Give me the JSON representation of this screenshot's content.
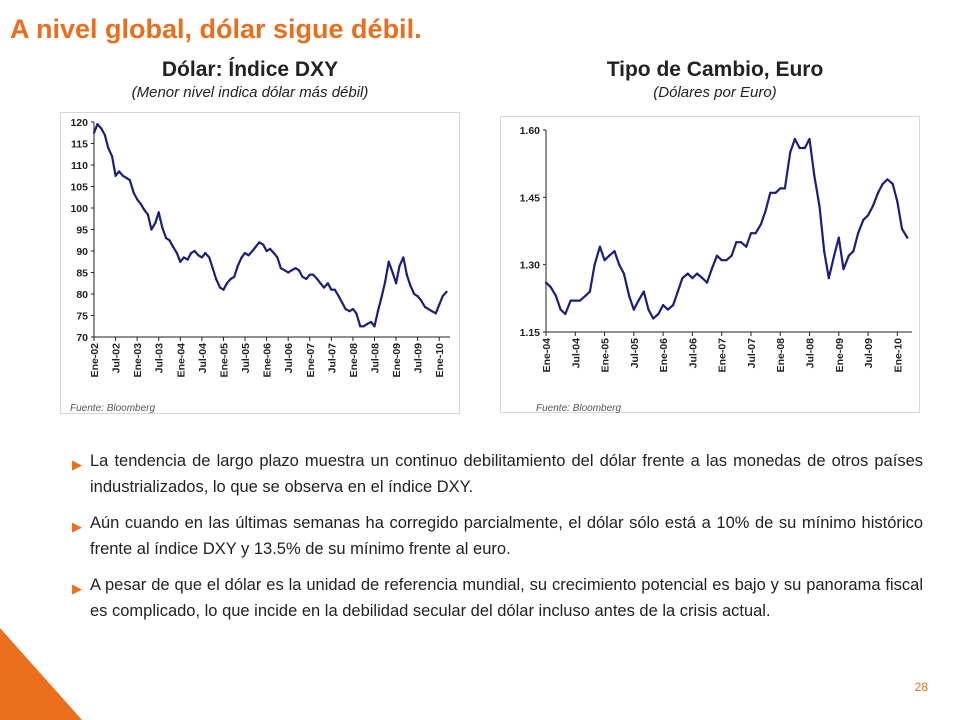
{
  "slide": {
    "title": "A nivel global, dólar sigue débil.",
    "page_number": "28",
    "accent_color": "#EB6E1C",
    "bullet_icon": "triangle-right-icon"
  },
  "bullets": [
    "La tendencia de largo plazo muestra un continuo debilitamiento del dólar frente a las monedas de otros países industrializados, lo que se observa en el índice DXY.",
    "Aún cuando en las últimas semanas ha corregido parcialmente, el dólar sólo está a 10% de su mínimo histórico frente al índice DXY y 13.5% de su mínimo frente al euro.",
    "A pesar de que el dólar es la unidad de referencia mundial, su crecimiento potencial es bajo y su panorama fiscal es complicado, lo que incide en la debilidad secular del dólar incluso antes de la crisis actual."
  ],
  "chart_data": [
    {
      "type": "line",
      "title": "Dólar: Índice DXY",
      "subtitle": "(Menor nivel indica dólar más débil)",
      "source": "Fuente: Bloomberg",
      "ylim": [
        70,
        120
      ],
      "yticks": [
        70,
        75,
        80,
        85,
        90,
        95,
        100,
        105,
        110,
        115,
        120
      ],
      "xlim": [
        2002.0,
        2010.25
      ],
      "xtick_labels": [
        "Ene-02",
        "Jul-02",
        "Ene-03",
        "Jul-03",
        "Ene-04",
        "Jul-04",
        "Ene-05",
        "Jul-05",
        "Ene-06",
        "Jul-06",
        "Ene-07",
        "Jul-07",
        "Ene-08",
        "Jul-08",
        "Ene-09",
        "Jul-09",
        "Ene-10"
      ],
      "line_color": "#1B1F7A",
      "grid": false,
      "series": [
        {
          "x": [
            2002.0,
            2002.08,
            2002.17,
            2002.25,
            2002.33,
            2002.42,
            2002.5,
            2002.58,
            2002.67,
            2002.75,
            2002.83,
            2002.92,
            2003.0,
            2003.08,
            2003.17,
            2003.25,
            2003.33,
            2003.42,
            2003.5,
            2003.58,
            2003.67,
            2003.75,
            2003.83,
            2003.92,
            2004.0,
            2004.08,
            2004.17,
            2004.25,
            2004.33,
            2004.42,
            2004.5,
            2004.58,
            2004.67,
            2004.75,
            2004.83,
            2004.92,
            2005.0,
            2005.08,
            2005.17,
            2005.25,
            2005.33,
            2005.42,
            2005.5,
            2005.58,
            2005.67,
            2005.75,
            2005.83,
            2005.92,
            2006.0,
            2006.08,
            2006.17,
            2006.25,
            2006.33,
            2006.42,
            2006.5,
            2006.58,
            2006.67,
            2006.75,
            2006.83,
            2006.92,
            2007.0,
            2007.08,
            2007.17,
            2007.25,
            2007.33,
            2007.42,
            2007.5,
            2007.58,
            2007.67,
            2007.75,
            2007.83,
            2007.92,
            2008.0,
            2008.08,
            2008.17,
            2008.25,
            2008.33,
            2008.42,
            2008.5,
            2008.58,
            2008.67,
            2008.75,
            2008.83,
            2008.92,
            2009.0,
            2009.08,
            2009.17,
            2009.25,
            2009.33,
            2009.42,
            2009.5,
            2009.58,
            2009.67,
            2009.75,
            2009.83,
            2009.92,
            2010.0,
            2010.08,
            2010.17
          ],
          "y": [
            117.5,
            119.5,
            118.5,
            117.0,
            114.0,
            112.0,
            107.5,
            108.5,
            107.5,
            107.0,
            106.5,
            103.5,
            102.0,
            101.0,
            99.5,
            98.5,
            95.0,
            96.5,
            99.0,
            95.5,
            93.0,
            92.5,
            91.0,
            89.5,
            87.5,
            88.5,
            88.0,
            89.5,
            90.0,
            89.0,
            88.5,
            89.5,
            88.5,
            86.0,
            83.5,
            81.5,
            81.0,
            82.5,
            83.5,
            84.0,
            86.5,
            88.5,
            89.5,
            89.0,
            90.0,
            91.0,
            92.0,
            91.5,
            90.0,
            90.5,
            89.5,
            88.5,
            86.0,
            85.5,
            85.0,
            85.5,
            86.0,
            85.5,
            84.0,
            83.5,
            84.5,
            84.5,
            83.5,
            82.5,
            81.5,
            82.5,
            81.0,
            81.0,
            79.5,
            78.0,
            76.5,
            76.0,
            76.5,
            75.5,
            72.5,
            72.5,
            73.0,
            73.5,
            72.5,
            76.0,
            79.5,
            83.0,
            87.5,
            85.0,
            82.5,
            86.5,
            88.5,
            84.5,
            82.0,
            80.0,
            79.5,
            78.5,
            77.0,
            76.5,
            76.0,
            75.5,
            77.5,
            79.5,
            80.5
          ]
        }
      ]
    },
    {
      "type": "line",
      "title": "Tipo de Cambio, Euro",
      "subtitle": "(Dólares por Euro)",
      "source": "Fuente: Bloomberg",
      "ylim": [
        1.15,
        1.6
      ],
      "yticks": [
        1.15,
        1.3,
        1.45,
        1.6
      ],
      "ytick_labels": [
        "1.15",
        "1.30",
        "1.45",
        "1.60"
      ],
      "xlim": [
        2004.0,
        2010.25
      ],
      "xtick_labels": [
        "Ene-04",
        "Jul-04",
        "Ene-05",
        "Jul-05",
        "Ene-06",
        "Jul-06",
        "Ene-07",
        "Jul-07",
        "Ene-08",
        "Jul-08",
        "Ene-09",
        "Jul-09",
        "Ene-10"
      ],
      "line_color": "#1B1F7A",
      "grid": false,
      "series": [
        {
          "x": [
            2004.0,
            2004.08,
            2004.17,
            2004.25,
            2004.33,
            2004.42,
            2004.5,
            2004.58,
            2004.67,
            2004.75,
            2004.83,
            2004.92,
            2005.0,
            2005.08,
            2005.17,
            2005.25,
            2005.33,
            2005.42,
            2005.5,
            2005.58,
            2005.67,
            2005.75,
            2005.83,
            2005.92,
            2006.0,
            2006.08,
            2006.17,
            2006.25,
            2006.33,
            2006.42,
            2006.5,
            2006.58,
            2006.67,
            2006.75,
            2006.83,
            2006.92,
            2007.0,
            2007.08,
            2007.17,
            2007.25,
            2007.33,
            2007.42,
            2007.5,
            2007.58,
            2007.67,
            2007.75,
            2007.83,
            2007.92,
            2008.0,
            2008.08,
            2008.17,
            2008.25,
            2008.33,
            2008.42,
            2008.5,
            2008.58,
            2008.67,
            2008.75,
            2008.83,
            2008.92,
            2009.0,
            2009.08,
            2009.17,
            2009.25,
            2009.33,
            2009.42,
            2009.5,
            2009.58,
            2009.67,
            2009.75,
            2009.83,
            2009.92,
            2010.0,
            2010.08,
            2010.17
          ],
          "y": [
            1.26,
            1.25,
            1.23,
            1.2,
            1.19,
            1.22,
            1.22,
            1.22,
            1.23,
            1.24,
            1.3,
            1.34,
            1.31,
            1.32,
            1.33,
            1.3,
            1.28,
            1.23,
            1.2,
            1.22,
            1.24,
            1.2,
            1.18,
            1.19,
            1.21,
            1.2,
            1.21,
            1.24,
            1.27,
            1.28,
            1.27,
            1.28,
            1.27,
            1.26,
            1.29,
            1.32,
            1.31,
            1.31,
            1.32,
            1.35,
            1.35,
            1.34,
            1.37,
            1.37,
            1.39,
            1.42,
            1.46,
            1.46,
            1.47,
            1.47,
            1.55,
            1.58,
            1.56,
            1.56,
            1.58,
            1.5,
            1.43,
            1.33,
            1.27,
            1.32,
            1.36,
            1.29,
            1.32,
            1.33,
            1.37,
            1.4,
            1.41,
            1.43,
            1.46,
            1.48,
            1.49,
            1.48,
            1.44,
            1.38,
            1.36
          ]
        }
      ]
    }
  ]
}
